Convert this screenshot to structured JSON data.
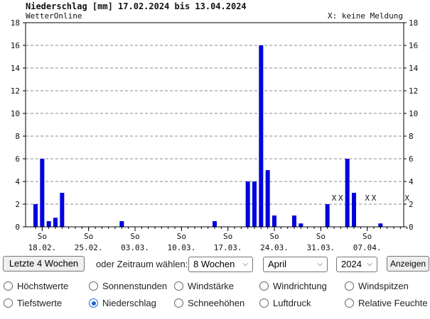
{
  "chart_data": {
    "type": "bar",
    "title": "Niederschlag [mm] 17.02.2024 bis 13.04.2024",
    "source": "WetterOnline",
    "note": "X: keine Meldung",
    "ylim": [
      0,
      18
    ],
    "yticks": [
      0,
      2,
      4,
      6,
      8,
      10,
      12,
      14,
      16,
      18
    ],
    "grid": true,
    "x_tick_labels": [
      {
        "day": 1,
        "weekday": "So",
        "date": "18.02."
      },
      {
        "day": 8,
        "weekday": "So",
        "date": "25.02."
      },
      {
        "day": 15,
        "weekday": "So",
        "date": "03.03."
      },
      {
        "day": 22,
        "weekday": "So",
        "date": "10.03."
      },
      {
        "day": 29,
        "weekday": "So",
        "date": "17.03."
      },
      {
        "day": 36,
        "weekday": "So",
        "date": "24.03."
      },
      {
        "day": 43,
        "weekday": "So",
        "date": "31.03."
      },
      {
        "day": 50,
        "weekday": "So",
        "date": "07.04."
      }
    ],
    "series": [
      {
        "values": [
          {
            "day": 0,
            "value": 2
          },
          {
            "day": 1,
            "value": 6
          },
          {
            "day": 2,
            "value": 0.5
          },
          {
            "day": 3,
            "value": 0.8
          },
          {
            "day": 4,
            "value": 3
          },
          {
            "day": 13,
            "value": 0.5
          },
          {
            "day": 27,
            "value": 0.5
          },
          {
            "day": 32,
            "value": 4
          },
          {
            "day": 33,
            "value": 4
          },
          {
            "day": 34,
            "value": 16
          },
          {
            "day": 35,
            "value": 5
          },
          {
            "day": 36,
            "value": 1
          },
          {
            "day": 39,
            "value": 1
          },
          {
            "day": 40,
            "value": 0.3
          },
          {
            "day": 44,
            "value": 2
          },
          {
            "day": 47,
            "value": 6
          },
          {
            "day": 48,
            "value": 3
          },
          {
            "day": 52,
            "value": 0.3
          }
        ]
      }
    ],
    "missing_days": [
      45,
      46,
      50,
      51,
      56
    ],
    "missing_marker": "X",
    "bar_color": "#0000dd"
  },
  "controls": {
    "last4_label": "Letzte 4 Wochen",
    "or_label": "oder Zeitraum wählen:",
    "period": "8 Wochen",
    "month": "April",
    "year": "2024",
    "show_label": "Anzeigen"
  },
  "radios": [
    {
      "label": "Höchstwerte",
      "checked": false
    },
    {
      "label": "Sonnenstunden",
      "checked": false
    },
    {
      "label": "Windstärke",
      "checked": false
    },
    {
      "label": "Windrichtung",
      "checked": false
    },
    {
      "label": "Windspitzen",
      "checked": false
    },
    {
      "label": "Tiefstwerte",
      "checked": false
    },
    {
      "label": "Niederschlag",
      "checked": true
    },
    {
      "label": "Schneehöhen",
      "checked": false
    },
    {
      "label": "Luftdruck",
      "checked": false
    },
    {
      "label": "Relative Feuchte",
      "checked": false
    }
  ]
}
